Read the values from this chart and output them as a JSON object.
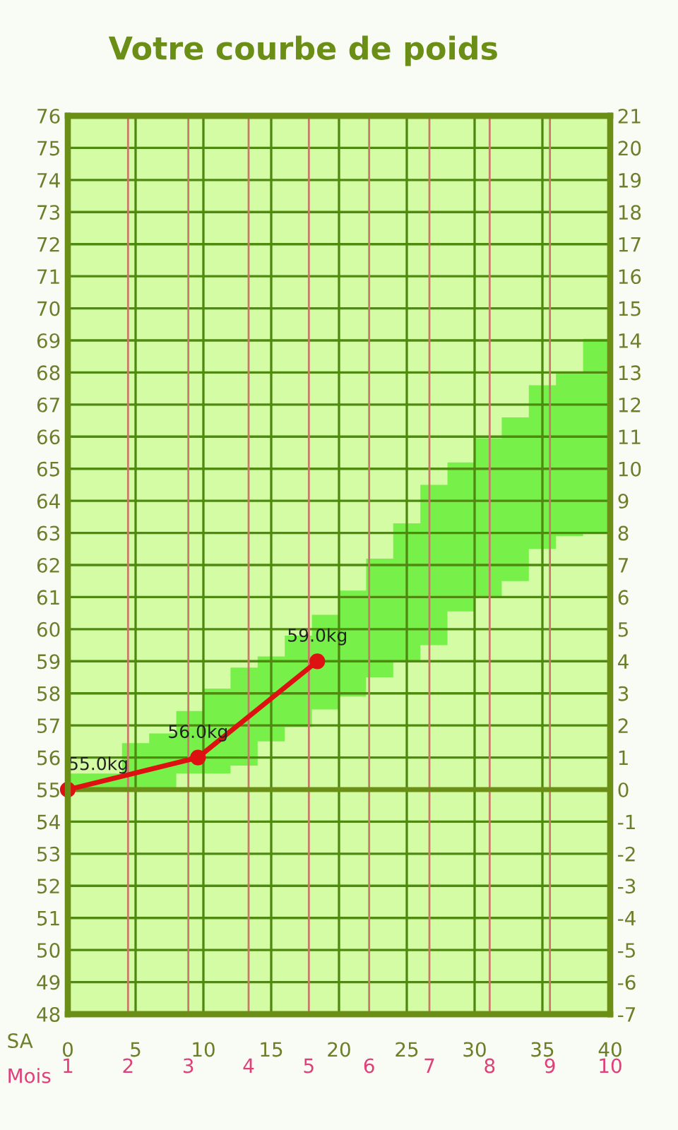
{
  "chart_data": {
    "type": "line",
    "title": "Votre courbe de poids",
    "xlabel": "SA",
    "x2label": "Mois",
    "xlim": [
      0,
      40
    ],
    "xticks": [
      0,
      5,
      10,
      15,
      20,
      25,
      30,
      35,
      40
    ],
    "x2lim": [
      1,
      10
    ],
    "x2ticks": [
      1,
      2,
      3,
      4,
      5,
      6,
      7,
      8,
      9,
      10
    ],
    "ylim": [
      48,
      76
    ],
    "yticks": [
      48,
      49,
      50,
      51,
      52,
      53,
      54,
      55,
      56,
      57,
      58,
      59,
      60,
      61,
      62,
      63,
      64,
      65,
      66,
      67,
      68,
      69,
      70,
      71,
      72,
      73,
      74,
      75,
      76
    ],
    "y2lim": [
      -7,
      21
    ],
    "y2ticks": [
      -7,
      -6,
      -5,
      -4,
      -3,
      -2,
      -1,
      0,
      1,
      2,
      3,
      4,
      5,
      6,
      7,
      8,
      9,
      10,
      11,
      12,
      13,
      14,
      15,
      16,
      17,
      18,
      19,
      20,
      21
    ],
    "grid": true,
    "marker": "circle",
    "line_style": "solid",
    "ref_lines": [
      {
        "axis": "y",
        "value": 55,
        "color": "#6b8e16"
      }
    ],
    "series": [
      {
        "type": "step",
        "color": "#77f04a",
        "x": [
          0,
          2,
          4,
          6,
          8,
          10,
          12,
          14,
          16,
          18,
          20,
          22,
          24,
          26,
          28,
          30,
          32,
          34,
          36,
          38,
          40
        ],
        "values": [
          null,
          null,
          null,
          null,
          null,
          null,
          null,
          null,
          null,
          null,
          null,
          null,
          null,
          null,
          null,
          null,
          null,
          null,
          null,
          null,
          null
        ],
        "lower": [
          55,
          55,
          55,
          55,
          55.5,
          55.5,
          55.75,
          56.5,
          56.95,
          57.5,
          57.9,
          58.5,
          59.0,
          59.5,
          60.55,
          61.0,
          61.5,
          62.5,
          62.9,
          63.0,
          63.0
        ],
        "upper": [
          55.5,
          55.5,
          56.45,
          56.75,
          57.45,
          58.15,
          58.8,
          59.15,
          59.8,
          60.45,
          61.2,
          62.2,
          63.3,
          64.5,
          65.2,
          65.95,
          66.6,
          67.6,
          68.0,
          69.05,
          69.05
        ]
      },
      {
        "color": "#dd1111",
        "x": [
          0,
          9.6,
          18.4
        ],
        "values": [
          55,
          56,
          59
        ],
        "value_labels": [
          "55.0kg",
          "56.0kg",
          "59.0kg"
        ]
      }
    ]
  }
}
